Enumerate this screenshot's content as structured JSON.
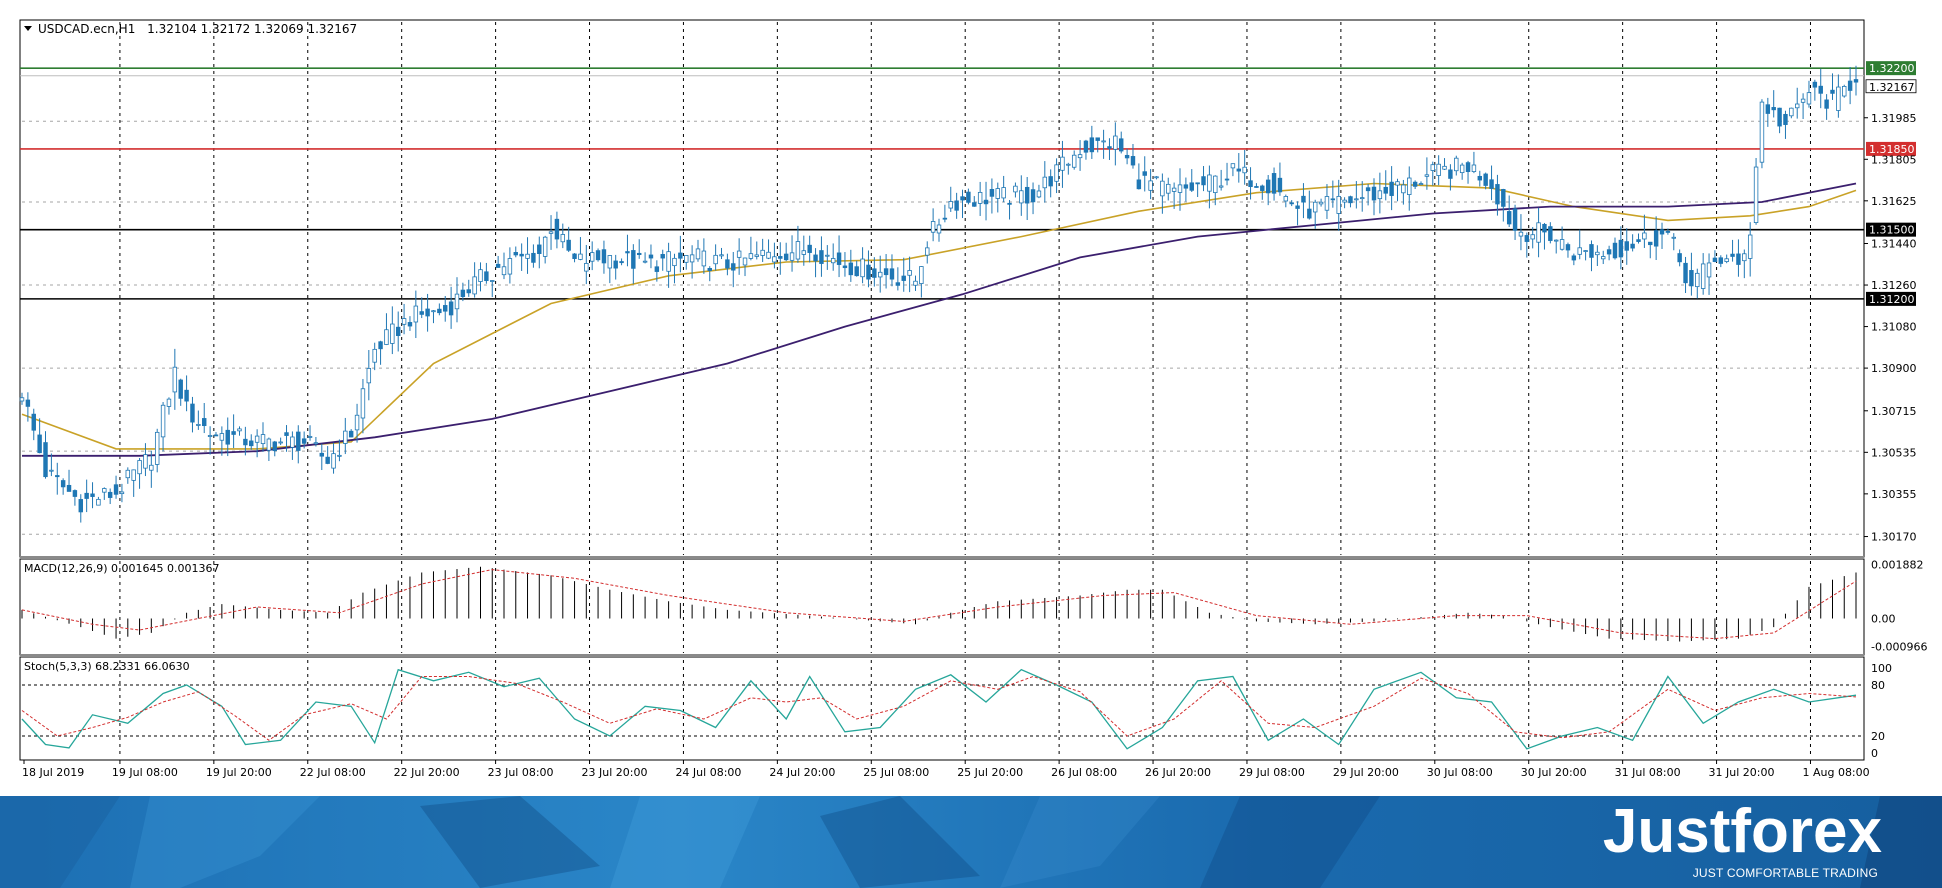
{
  "window": {
    "symbol_info": "USDCAD.ecn,H1",
    "ohlc": "1.32104 1.32172 1.32069 1.32167"
  },
  "colors": {
    "background": "#ffffff",
    "grid": "#000000",
    "candle_bull": "#ffffff",
    "candle_bear": "#1f77b4",
    "candle_outline": "#1f77b4",
    "ma_fast": "#c9a227",
    "ma_slow": "#3b1f6e",
    "level_resistance_top": "#2e7d32",
    "level_resistance": "#d32f2f",
    "level_support": "#000000",
    "macd_signal": "#d32f2f",
    "stoch_main": "#26a69a",
    "stoch_signal": "#d32f2f",
    "banner": "#1d6fb3"
  },
  "chart_data": [
    {
      "type": "candlestick",
      "title": "USDCAD.ecn,H1",
      "ohlc_label": "1.32104 1.32172 1.32069 1.32167",
      "ylim": [
        1.3009,
        1.324
      ],
      "yticks": [
        "1.32200",
        "1.32167",
        "1.31985",
        "1.31850",
        "1.31805",
        "1.31625",
        "1.31500",
        "1.31440",
        "1.31260",
        "1.31200",
        "1.31080",
        "1.30900",
        "1.30715",
        "1.30535",
        "1.30355",
        "1.30170"
      ],
      "xticks": [
        "18 Jul 2019",
        "19 Jul 08:00",
        "19 Jul 20:00",
        "22 Jul 08:00",
        "22 Jul 20:00",
        "23 Jul 08:00",
        "23 Jul 20:00",
        "24 Jul 08:00",
        "24 Jul 20:00",
        "25 Jul 08:00",
        "25 Jul 20:00",
        "26 Jul 08:00",
        "26 Jul 20:00",
        "29 Jul 08:00",
        "29 Jul 20:00",
        "30 Jul 08:00",
        "30 Jul 20:00",
        "31 Jul 08:00",
        "31 Jul 20:00",
        "1 Aug 08:00"
      ],
      "horizontal_levels": [
        {
          "value": 1.322,
          "label": "1.32200",
          "color": "#2e7d32"
        },
        {
          "value": 1.3185,
          "label": "1.31850",
          "color": "#d32f2f"
        },
        {
          "value": 1.315,
          "label": "1.31500",
          "color": "#000000"
        },
        {
          "value": 1.312,
          "label": "1.31200",
          "color": "#000000"
        }
      ],
      "current_price": {
        "value": 1.32167,
        "label": "1.32167"
      },
      "price_path": [
        [
          0,
          1.308
        ],
        [
          4,
          1.3045
        ],
        [
          10,
          1.3032
        ],
        [
          16,
          1.3036
        ],
        [
          22,
          1.3052
        ],
        [
          26,
          1.3088
        ],
        [
          28,
          1.3072
        ],
        [
          32,
          1.3062
        ],
        [
          40,
          1.3058
        ],
        [
          48,
          1.3058
        ],
        [
          52,
          1.305
        ],
        [
          56,
          1.3062
        ],
        [
          60,
          1.3098
        ],
        [
          66,
          1.3112
        ],
        [
          72,
          1.3115
        ],
        [
          76,
          1.3125
        ],
        [
          82,
          1.3135
        ],
        [
          88,
          1.314
        ],
        [
          90,
          1.3152
        ],
        [
          94,
          1.3136
        ],
        [
          100,
          1.3138
        ],
        [
          106,
          1.3135
        ],
        [
          114,
          1.3138
        ],
        [
          120,
          1.3135
        ],
        [
          128,
          1.314
        ],
        [
          134,
          1.3142
        ],
        [
          140,
          1.3135
        ],
        [
          148,
          1.313
        ],
        [
          152,
          1.3128
        ],
        [
          154,
          1.3145
        ],
        [
          158,
          1.3162
        ],
        [
          164,
          1.3164
        ],
        [
          172,
          1.3165
        ],
        [
          176,
          1.3175
        ],
        [
          180,
          1.3185
        ],
        [
          186,
          1.3188
        ],
        [
          190,
          1.3172
        ],
        [
          196,
          1.3166
        ],
        [
          202,
          1.317
        ],
        [
          206,
          1.3175
        ],
        [
          212,
          1.317
        ],
        [
          218,
          1.3158
        ],
        [
          222,
          1.316
        ],
        [
          228,
          1.3164
        ],
        [
          234,
          1.3168
        ],
        [
          240,
          1.3174
        ],
        [
          246,
          1.3178
        ],
        [
          250,
          1.317
        ],
        [
          254,
          1.315
        ],
        [
          260,
          1.3148
        ],
        [
          264,
          1.314
        ],
        [
          270,
          1.314
        ],
        [
          276,
          1.3146
        ],
        [
          280,
          1.3148
        ],
        [
          284,
          1.3125
        ],
        [
          288,
          1.3138
        ],
        [
          292,
          1.3134
        ],
        [
          294,
          1.315
        ],
        [
          296,
          1.3205
        ],
        [
          300,
          1.3195
        ],
        [
          304,
          1.321
        ],
        [
          308,
          1.3205
        ],
        [
          312,
          1.32167
        ]
      ],
      "ma_fast": {
        "name": "",
        "points": [
          [
            0,
            1.307
          ],
          [
            16,
            1.3055
          ],
          [
            40,
            1.3055
          ],
          [
            56,
            1.3058
          ],
          [
            70,
            1.3092
          ],
          [
            90,
            1.3118
          ],
          [
            110,
            1.313
          ],
          [
            130,
            1.3136
          ],
          [
            150,
            1.3137
          ],
          [
            170,
            1.3147
          ],
          [
            190,
            1.3158
          ],
          [
            210,
            1.3166
          ],
          [
            230,
            1.317
          ],
          [
            250,
            1.3168
          ],
          [
            264,
            1.316
          ],
          [
            280,
            1.3154
          ],
          [
            294,
            1.3156
          ],
          [
            304,
            1.316
          ],
          [
            312,
            1.3167
          ]
        ]
      },
      "ma_slow": {
        "name": "",
        "points": [
          [
            0,
            1.3052
          ],
          [
            20,
            1.3052
          ],
          [
            40,
            1.3054
          ],
          [
            60,
            1.306
          ],
          [
            80,
            1.3068
          ],
          [
            100,
            1.308
          ],
          [
            120,
            1.3092
          ],
          [
            140,
            1.3108
          ],
          [
            160,
            1.3122
          ],
          [
            180,
            1.3138
          ],
          [
            200,
            1.3147
          ],
          [
            220,
            1.3152
          ],
          [
            240,
            1.3157
          ],
          [
            260,
            1.316
          ],
          [
            280,
            1.316
          ],
          [
            296,
            1.3162
          ],
          [
            312,
            1.317
          ]
        ]
      },
      "n_bars": 313
    },
    {
      "type": "bar",
      "title": "MACD(12,26,9) 0.001645 0.001367",
      "ylim": [
        -0.0012,
        0.002
      ],
      "yticks": [
        "0.001882",
        "0.00",
        "-0.000966"
      ],
      "histogram_path": [
        [
          0,
          0.0003
        ],
        [
          10,
          -0.0003
        ],
        [
          16,
          -0.0007
        ],
        [
          22,
          -0.0005
        ],
        [
          28,
          0.0002
        ],
        [
          34,
          0.0005
        ],
        [
          44,
          0.0003
        ],
        [
          52,
          0.0002
        ],
        [
          58,
          0.0009
        ],
        [
          68,
          0.0016
        ],
        [
          78,
          0.0018
        ],
        [
          90,
          0.0015
        ],
        [
          100,
          0.001
        ],
        [
          110,
          0.0006
        ],
        [
          120,
          0.0003
        ],
        [
          134,
          0.0001
        ],
        [
          146,
          -0.0001
        ],
        [
          152,
          -0.0002
        ],
        [
          158,
          0.0002
        ],
        [
          166,
          0.0006
        ],
        [
          180,
          0.0008
        ],
        [
          188,
          0.001
        ],
        [
          194,
          0.001
        ],
        [
          202,
          0.0002
        ],
        [
          210,
          -0.0001
        ],
        [
          220,
          -0.0002
        ],
        [
          230,
          -0.0001
        ],
        [
          246,
          0.0002
        ],
        [
          252,
          0.0001
        ],
        [
          260,
          -0.0003
        ],
        [
          270,
          -0.0007
        ],
        [
          282,
          -0.0008
        ],
        [
          292,
          -0.0007
        ],
        [
          298,
          -0.0003
        ],
        [
          304,
          0.0011
        ],
        [
          312,
          0.0016
        ]
      ],
      "signal_path": [
        [
          0,
          0.0003
        ],
        [
          12,
          -0.0002
        ],
        [
          20,
          -0.0004
        ],
        [
          30,
          0.0
        ],
        [
          40,
          0.0004
        ],
        [
          54,
          0.0002
        ],
        [
          68,
          0.0012
        ],
        [
          80,
          0.0017
        ],
        [
          94,
          0.0014
        ],
        [
          110,
          0.0008
        ],
        [
          130,
          0.0002
        ],
        [
          150,
          -0.0001
        ],
        [
          166,
          0.0004
        ],
        [
          184,
          0.0008
        ],
        [
          196,
          0.0009
        ],
        [
          210,
          0.0001
        ],
        [
          226,
          -0.0002
        ],
        [
          244,
          0.0001
        ],
        [
          256,
          0.0001
        ],
        [
          272,
          -0.0005
        ],
        [
          288,
          -0.0007
        ],
        [
          298,
          -0.0005
        ],
        [
          312,
          0.0013
        ]
      ]
    },
    {
      "type": "line",
      "title": "Stoch(5,3,3) 68.2331 66.0630",
      "ylim": [
        0,
        100
      ],
      "yticks": [
        "100",
        "80",
        "20",
        "0"
      ],
      "levels": [
        80,
        20
      ],
      "main_path": [
        [
          0,
          40
        ],
        [
          4,
          10
        ],
        [
          8,
          6
        ],
        [
          12,
          45
        ],
        [
          18,
          35
        ],
        [
          24,
          70
        ],
        [
          28,
          80
        ],
        [
          34,
          55
        ],
        [
          38,
          10
        ],
        [
          44,
          15
        ],
        [
          50,
          60
        ],
        [
          56,
          55
        ],
        [
          60,
          12
        ],
        [
          64,
          98
        ],
        [
          70,
          85
        ],
        [
          76,
          95
        ],
        [
          82,
          78
        ],
        [
          88,
          88
        ],
        [
          94,
          40
        ],
        [
          100,
          20
        ],
        [
          106,
          55
        ],
        [
          112,
          50
        ],
        [
          118,
          30
        ],
        [
          124,
          85
        ],
        [
          130,
          40
        ],
        [
          134,
          90
        ],
        [
          140,
          25
        ],
        [
          146,
          30
        ],
        [
          152,
          75
        ],
        [
          158,
          92
        ],
        [
          164,
          60
        ],
        [
          170,
          98
        ],
        [
          176,
          80
        ],
        [
          182,
          60
        ],
        [
          188,
          5
        ],
        [
          194,
          30
        ],
        [
          200,
          85
        ],
        [
          206,
          90
        ],
        [
          212,
          15
        ],
        [
          218,
          40
        ],
        [
          224,
          10
        ],
        [
          230,
          75
        ],
        [
          238,
          95
        ],
        [
          244,
          65
        ],
        [
          250,
          60
        ],
        [
          256,
          5
        ],
        [
          262,
          20
        ],
        [
          268,
          30
        ],
        [
          274,
          15
        ],
        [
          280,
          90
        ],
        [
          286,
          35
        ],
        [
          292,
          60
        ],
        [
          298,
          75
        ],
        [
          304,
          60
        ],
        [
          312,
          68
        ]
      ],
      "signal_path": [
        [
          0,
          50
        ],
        [
          6,
          20
        ],
        [
          12,
          30
        ],
        [
          18,
          42
        ],
        [
          24,
          60
        ],
        [
          30,
          72
        ],
        [
          36,
          45
        ],
        [
          42,
          15
        ],
        [
          48,
          45
        ],
        [
          56,
          58
        ],
        [
          62,
          40
        ],
        [
          68,
          90
        ],
        [
          76,
          90
        ],
        [
          84,
          82
        ],
        [
          92,
          60
        ],
        [
          100,
          35
        ],
        [
          108,
          52
        ],
        [
          116,
          40
        ],
        [
          124,
          65
        ],
        [
          130,
          60
        ],
        [
          136,
          65
        ],
        [
          142,
          40
        ],
        [
          150,
          55
        ],
        [
          158,
          85
        ],
        [
          166,
          75
        ],
        [
          172,
          90
        ],
        [
          180,
          72
        ],
        [
          188,
          20
        ],
        [
          196,
          40
        ],
        [
          204,
          85
        ],
        [
          212,
          35
        ],
        [
          220,
          30
        ],
        [
          230,
          55
        ],
        [
          238,
          88
        ],
        [
          246,
          70
        ],
        [
          254,
          25
        ],
        [
          262,
          18
        ],
        [
          270,
          25
        ],
        [
          280,
          75
        ],
        [
          288,
          50
        ],
        [
          296,
          65
        ],
        [
          304,
          70
        ],
        [
          312,
          66
        ]
      ]
    }
  ],
  "banner": {
    "brand": "Justforex",
    "tagline": "JUST COMFORTABLE TRADING"
  }
}
